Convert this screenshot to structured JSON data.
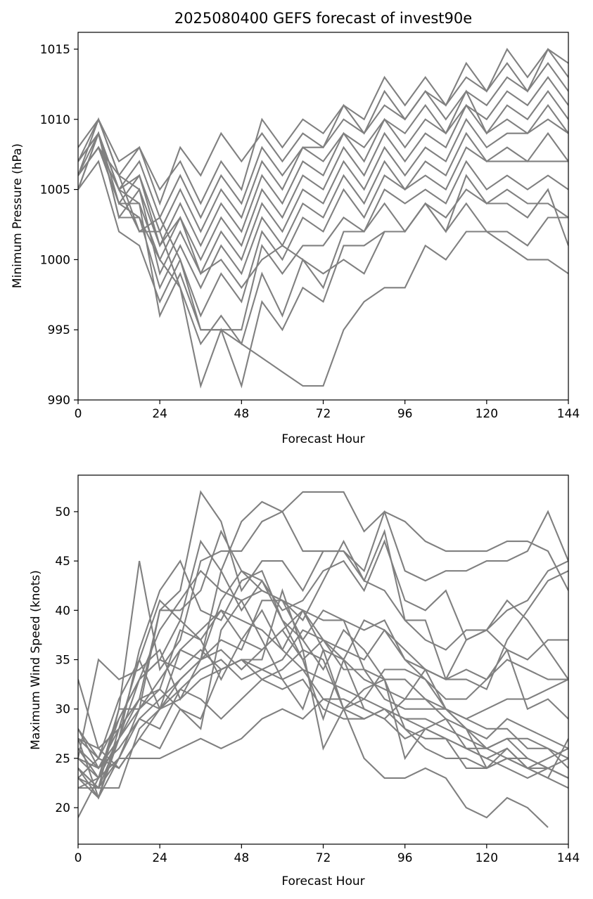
{
  "chart_data": [
    {
      "type": "line",
      "title": "2025080400 GEFS forecast of invest90e",
      "xlabel": "Forecast Hour",
      "ylabel": "Minimum Pressure (hPa)",
      "xlim": [
        0,
        144
      ],
      "ylim": [
        990,
        1016.2
      ],
      "xticks": [
        0,
        24,
        48,
        72,
        96,
        120,
        144
      ],
      "yticks": [
        990,
        995,
        1000,
        1005,
        1010,
        1015
      ],
      "line_color": "#808080",
      "grid": false,
      "x": [
        0,
        6,
        12,
        18,
        24,
        30,
        36,
        42,
        48,
        54,
        60,
        66,
        72,
        78,
        84,
        90,
        96,
        102,
        108,
        114,
        120,
        126,
        132,
        138,
        144
      ],
      "series": [
        {
          "values": [
            1008,
            1010,
            1007,
            1008,
            1005,
            1007,
            1004,
            1007,
            1005,
            1010,
            1008,
            1010,
            1009,
            1011,
            1010,
            1013,
            1011,
            1013,
            1011,
            1014,
            1012,
            1015,
            1013,
            1015,
            1014
          ]
        },
        {
          "values": [
            1007,
            1010,
            1006,
            1008,
            1004,
            1008,
            1006,
            1009,
            1007,
            1009,
            1007,
            1009,
            1008,
            1011,
            1009,
            1012,
            1010,
            1012,
            1011,
            1013,
            1012,
            1014,
            1012,
            1015,
            1013
          ]
        },
        {
          "values": [
            1006,
            1009,
            1005,
            1007,
            1003,
            1006,
            1003,
            1006,
            1004,
            1008,
            1006,
            1008,
            1008,
            1010,
            1009,
            1011,
            1010,
            1012,
            1010,
            1012,
            1011,
            1013,
            1012,
            1014,
            1012
          ]
        },
        {
          "values": [
            1005,
            1009,
            1004,
            1006,
            1002,
            1005,
            1002,
            1005,
            1003,
            1007,
            1005,
            1008,
            1007,
            1009,
            1008,
            1010,
            1009,
            1011,
            1009,
            1011,
            1010,
            1012,
            1011,
            1013,
            1011
          ]
        },
        {
          "values": [
            1006,
            1008,
            1006,
            1005,
            1001,
            1004,
            1001,
            1004,
            1002,
            1006,
            1004,
            1007,
            1006,
            1009,
            1007,
            1010,
            1008,
            1010,
            1009,
            1012,
            1009,
            1011,
            1010,
            1012,
            1010
          ]
        },
        {
          "values": [
            1005,
            1009,
            1005,
            1004,
            1000,
            1003,
            1000,
            1003,
            1001,
            1005,
            1003,
            1006,
            1005,
            1008,
            1006,
            1009,
            1007,
            1009,
            1008,
            1011,
            1009,
            1010,
            1009,
            1011,
            1009
          ]
        },
        {
          "values": [
            1007,
            1009,
            1003,
            1005,
            999,
            1002,
            999,
            1002,
            1000,
            1004,
            1002,
            1005,
            1004,
            1007,
            1005,
            1008,
            1006,
            1008,
            1007,
            1010,
            1008,
            1009,
            1009,
            1010,
            1009
          ]
        },
        {
          "values": [
            1006,
            1008,
            1004,
            1003,
            998,
            1001,
            998,
            1001,
            999,
            1003,
            1001,
            1004,
            1003,
            1006,
            1004,
            1007,
            1005,
            1007,
            1006,
            1009,
            1007,
            1008,
            1007,
            1009,
            1007
          ]
        },
        {
          "values": [
            1005,
            1007,
            1002,
            1001,
            997,
            1000,
            996,
            999,
            997,
            1002,
            1000,
            1003,
            1002,
            1005,
            1003,
            1006,
            1005,
            1006,
            1005,
            1008,
            1007,
            1007,
            1007,
            1007,
            1007
          ]
        },
        {
          "values": [
            1006,
            1008,
            1004,
            1004,
            996,
            999,
            995,
            995,
            995,
            1001,
            999,
            1001,
            1001,
            1003,
            1002,
            1005,
            1004,
            1005,
            1004,
            1007,
            1005,
            1006,
            1005,
            1006,
            1005
          ]
        },
        {
          "values": [
            1007,
            1009,
            1003,
            1003,
            1000,
            998,
            994,
            996,
            994,
            999,
            996,
            1000,
            998,
            1002,
            1002,
            1004,
            1002,
            1004,
            1002,
            1006,
            1004,
            1005,
            1004,
            1004,
            1003
          ]
        },
        {
          "values": [
            1006,
            1008,
            1005,
            1002,
            1002,
            998,
            991,
            995,
            991,
            997,
            995,
            998,
            997,
            1001,
            1001,
            1002,
            1002,
            1004,
            1003,
            1005,
            1004,
            1004,
            1003,
            1005,
            1001
          ]
        },
        {
          "values": [
            1006,
            1010,
            1006,
            1002,
            1003,
            1000,
            995,
            995,
            994,
            993,
            992,
            991,
            991,
            995,
            997,
            998,
            998,
            1001,
            1000,
            1002,
            1002,
            1002,
            1001,
            1003,
            1003
          ]
        },
        {
          "values": [
            1007,
            1009,
            1005,
            1006,
            1001,
            1003,
            999,
            1000,
            998,
            1000,
            1001,
            1000,
            999,
            1000,
            999,
            1002,
            1002,
            1004,
            1002,
            1004,
            1002,
            1001,
            1000,
            1000,
            999
          ]
        }
      ]
    },
    {
      "type": "line",
      "title": "",
      "xlabel": "Forecast Hour",
      "ylabel": "Maximum Wind Speed (knots)",
      "xlim": [
        0,
        144
      ],
      "ylim": [
        16.3,
        53.7
      ],
      "xticks": [
        0,
        24,
        48,
        72,
        96,
        120,
        144
      ],
      "yticks": [
        20,
        25,
        30,
        35,
        40,
        45,
        50
      ],
      "line_color": "#808080",
      "grid": false,
      "x": [
        0,
        6,
        12,
        18,
        24,
        30,
        36,
        42,
        48,
        54,
        60,
        66,
        72,
        78,
        84,
        90,
        96,
        102,
        108,
        114,
        120,
        126,
        132,
        138,
        144
      ],
      "series": [
        {
          "values": [
            24,
            22,
            30,
            30,
            40,
            42,
            52,
            49,
            42,
            45,
            45,
            42,
            46,
            46,
            43,
            48,
            39,
            37,
            36,
            38,
            38,
            41,
            39,
            36,
            33
          ]
        },
        {
          "values": [
            28,
            25,
            31,
            35,
            41,
            39,
            47,
            44,
            49,
            51,
            50,
            46,
            46,
            46,
            44,
            50,
            49,
            47,
            46,
            46,
            46,
            47,
            47,
            46,
            42
          ]
        },
        {
          "values": [
            25,
            23,
            30,
            45,
            34,
            37,
            45,
            46,
            46,
            49,
            50,
            52,
            52,
            52,
            48,
            50,
            44,
            43,
            44,
            44,
            45,
            45,
            46,
            50,
            45
          ]
        },
        {
          "values": [
            26,
            24,
            28,
            31,
            40,
            40,
            42,
            48,
            44,
            43,
            40,
            41,
            44,
            45,
            42,
            47,
            41,
            40,
            42,
            37,
            38,
            40,
            41,
            44,
            45
          ]
        },
        {
          "values": [
            27,
            25,
            29,
            33,
            38,
            41,
            44,
            42,
            41,
            42,
            41,
            39,
            43,
            47,
            43,
            42,
            39,
            39,
            33,
            33,
            32,
            37,
            40,
            43,
            44
          ]
        },
        {
          "values": [
            23,
            21,
            27,
            36,
            42,
            45,
            40,
            39,
            43,
            44,
            39,
            37,
            40,
            39,
            38,
            39,
            35,
            33,
            31,
            31,
            33,
            36,
            35,
            37,
            37
          ]
        },
        {
          "values": [
            22,
            22,
            25,
            30,
            32,
            38,
            37,
            40,
            39,
            38,
            36,
            40,
            39,
            39,
            34,
            33,
            33,
            31,
            30,
            29,
            30,
            31,
            31,
            32,
            33
          ]
        },
        {
          "values": [
            33,
            26,
            24,
            27,
            30,
            32,
            34,
            35,
            33,
            34,
            35,
            38,
            37,
            36,
            35,
            38,
            36,
            34,
            33,
            34,
            33,
            35,
            34,
            33,
            33
          ]
        },
        {
          "values": [
            25,
            24,
            26,
            29,
            31,
            33,
            35,
            36,
            34,
            36,
            38,
            40,
            36,
            35,
            33,
            32,
            31,
            31,
            29,
            28,
            27,
            29,
            28,
            27,
            26
          ]
        },
        {
          "values": [
            24,
            22,
            22,
            28,
            30,
            31,
            33,
            34,
            35,
            34,
            33,
            34,
            33,
            32,
            31,
            30,
            29,
            29,
            28,
            27,
            26,
            27,
            27,
            26,
            25
          ]
        },
        {
          "values": [
            26,
            23,
            27,
            30,
            33,
            36,
            38,
            40,
            37,
            36,
            38,
            35,
            37,
            34,
            34,
            31,
            30,
            30,
            30,
            29,
            28,
            28,
            26,
            26,
            24
          ]
        },
        {
          "values": [
            22,
            23,
            29,
            33,
            35,
            39,
            37,
            33,
            37,
            40,
            36,
            34,
            31,
            31,
            30,
            29,
            31,
            34,
            30,
            28,
            26,
            27,
            25,
            24,
            23
          ]
        },
        {
          "values": [
            27,
            26,
            28,
            31,
            32,
            30,
            29,
            34,
            35,
            33,
            32,
            33,
            30,
            29,
            29,
            30,
            28,
            27,
            27,
            26,
            25,
            26,
            24,
            24,
            23
          ]
        },
        {
          "values": [
            19,
            23,
            25,
            25,
            25,
            26,
            27,
            26,
            27,
            29,
            30,
            29,
            31,
            30,
            29,
            30,
            29,
            28,
            27,
            26,
            26,
            25,
            25,
            24,
            23
          ]
        },
        {
          "values": [
            24,
            21,
            28,
            35,
            30,
            33,
            35,
            44,
            40,
            43,
            39,
            35,
            29,
            35,
            30,
            29,
            27,
            28,
            27,
            24,
            24,
            26,
            24,
            23,
            22
          ]
        },
        {
          "values": [
            23,
            25,
            24,
            27,
            26,
            30,
            28,
            38,
            41,
            37,
            33,
            30,
            36,
            30,
            25,
            23,
            23,
            24,
            23,
            20,
            19,
            21,
            20,
            18,
            null
          ]
        },
        {
          "values": [
            25,
            35,
            33,
            34,
            36,
            31,
            35,
            41,
            44,
            42,
            41,
            37,
            34,
            38,
            36,
            33,
            25,
            28,
            29,
            26,
            25,
            24,
            23,
            24,
            25
          ]
        },
        {
          "values": [
            23,
            22,
            27,
            33,
            35,
            34,
            36,
            34,
            35,
            35,
            42,
            36,
            26,
            30,
            31,
            34,
            34,
            33,
            30,
            28,
            24,
            25,
            24,
            25,
            26
          ]
        },
        {
          "values": [
            28,
            24,
            27,
            31,
            30,
            36,
            35,
            37,
            36,
            41,
            41,
            40,
            37,
            35,
            39,
            38,
            35,
            34,
            33,
            37,
            38,
            36,
            30,
            31,
            29
          ]
        },
        {
          "values": [
            27,
            21,
            25,
            29,
            28,
            32,
            31,
            29,
            31,
            33,
            34,
            36,
            35,
            30,
            32,
            33,
            28,
            26,
            25,
            25,
            24,
            25,
            24,
            23,
            27
          ]
        }
      ]
    }
  ]
}
